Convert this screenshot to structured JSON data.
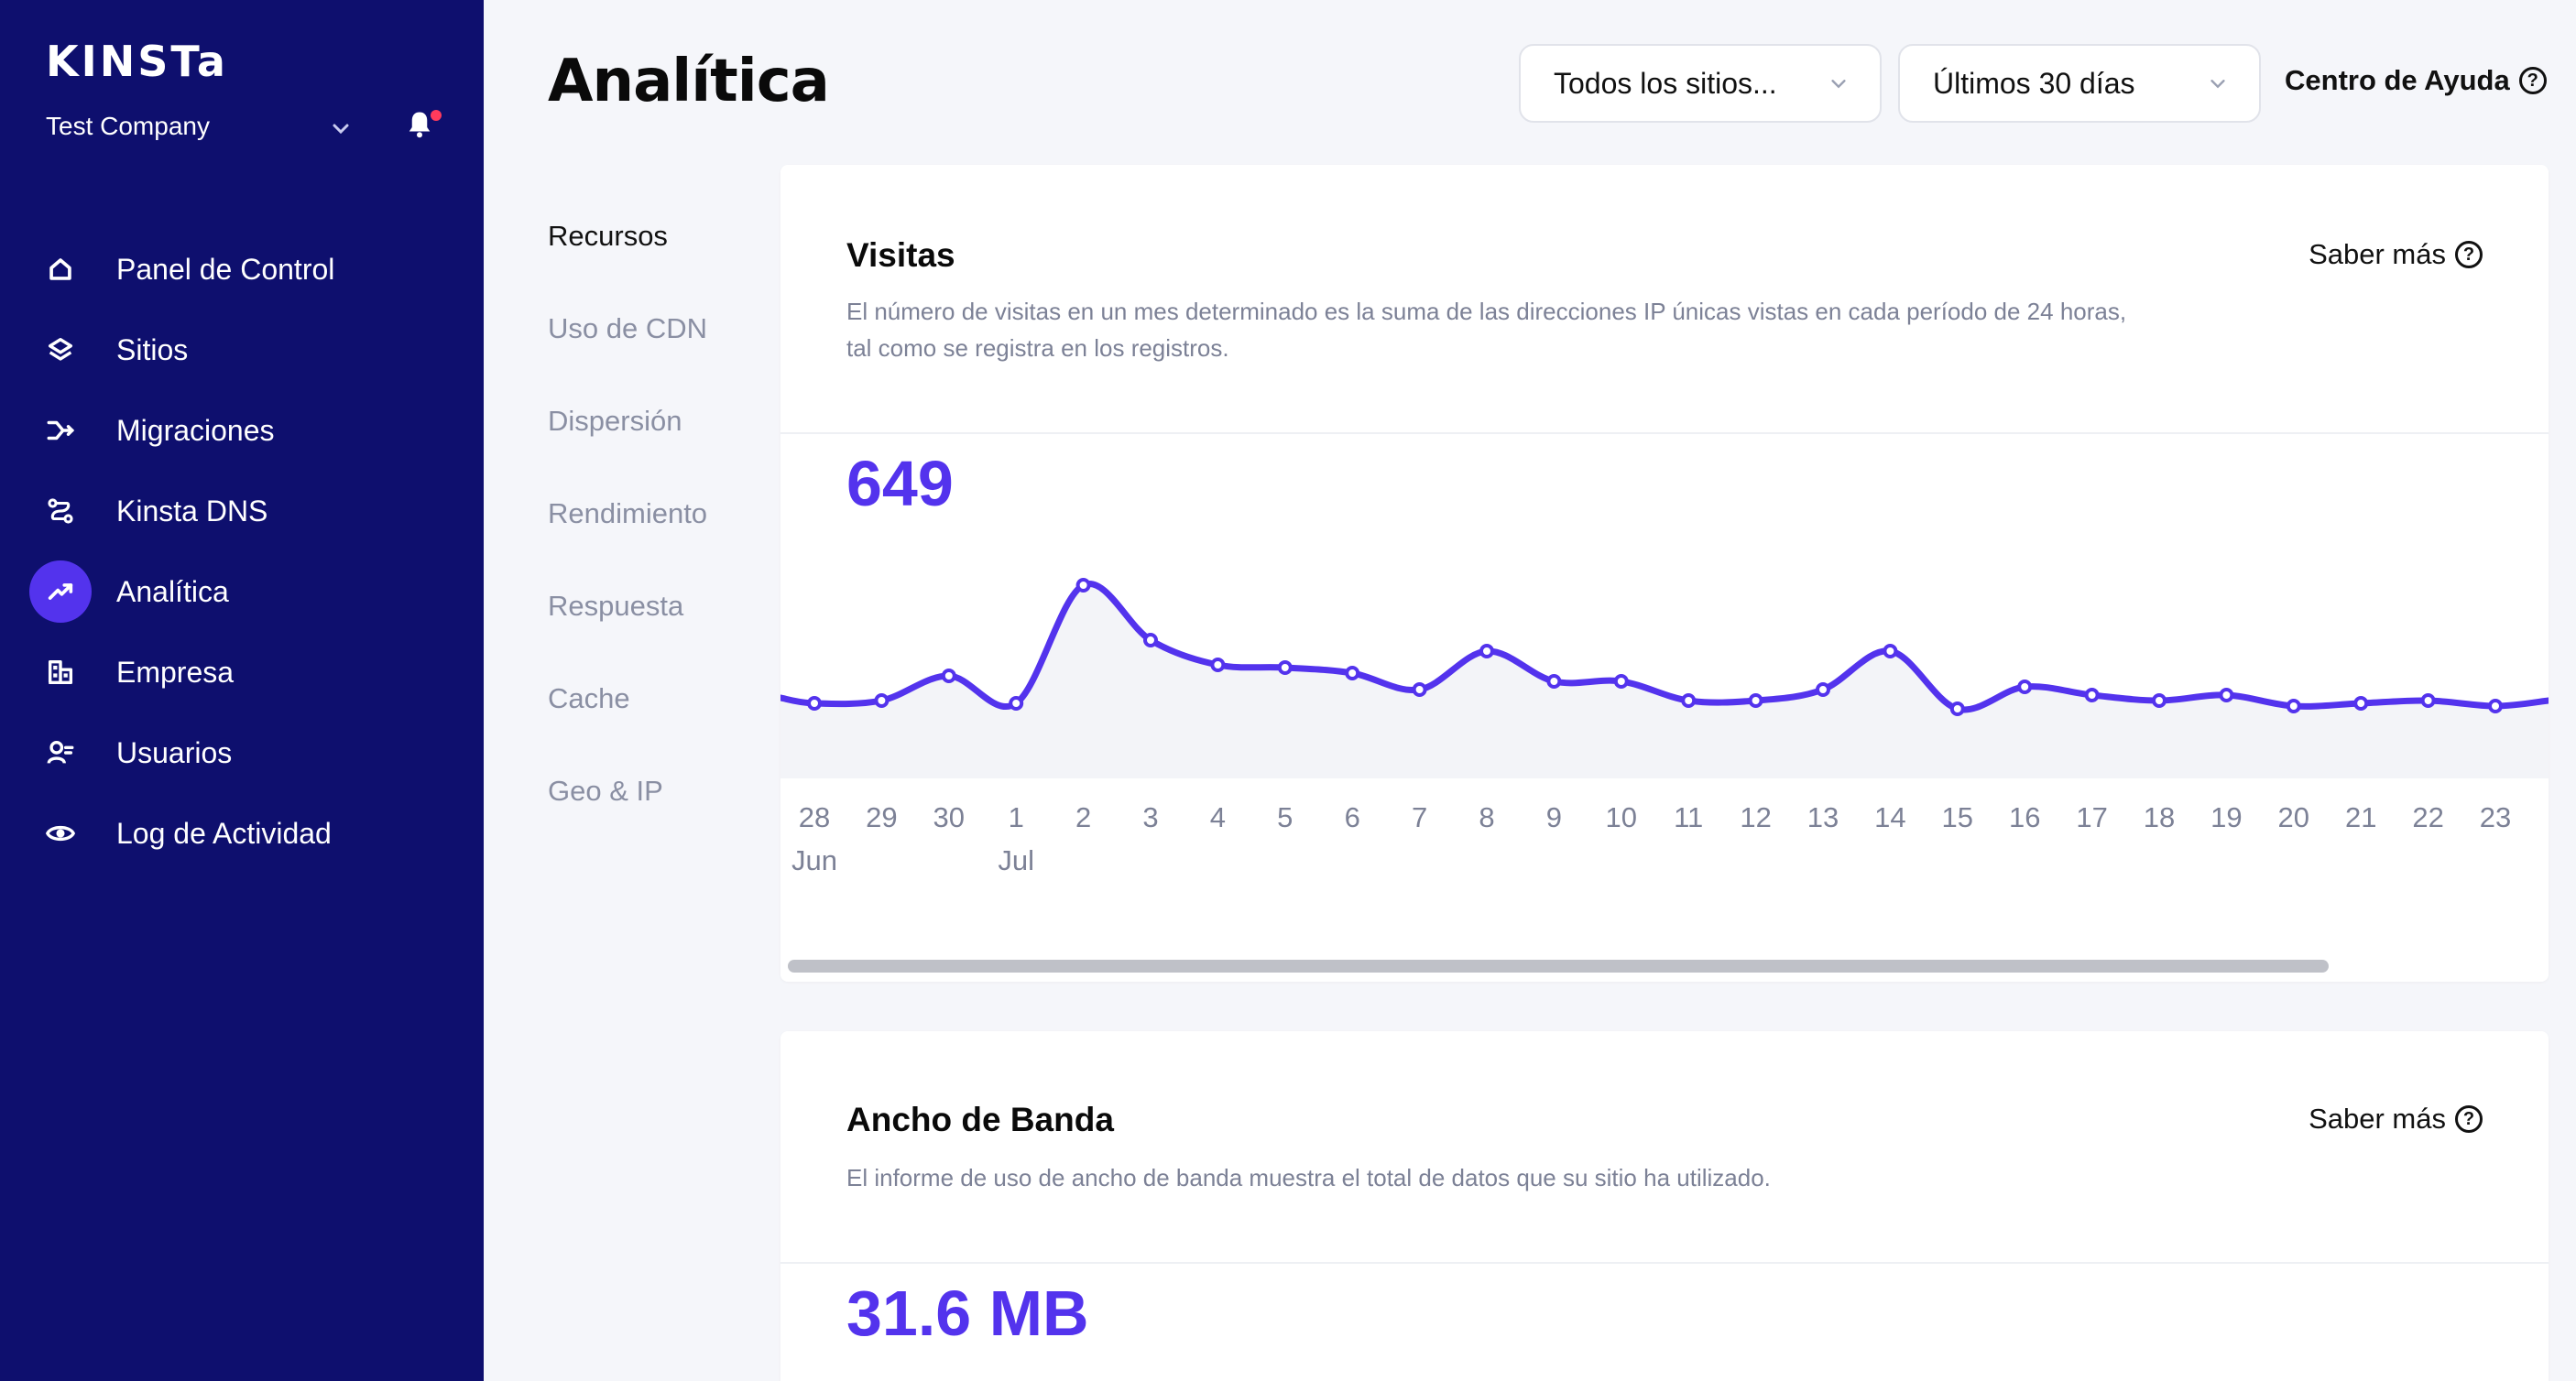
{
  "sidebar": {
    "logo": "KINSTa",
    "company": "Test Company",
    "items": [
      {
        "label": "Panel de Control",
        "icon": "home-icon"
      },
      {
        "label": "Sitios",
        "icon": "layers-icon"
      },
      {
        "label": "Migraciones",
        "icon": "migrate-icon"
      },
      {
        "label": "Kinsta DNS",
        "icon": "dns-icon"
      },
      {
        "label": "Analítica",
        "icon": "trend-icon",
        "active": true
      },
      {
        "label": "Empresa",
        "icon": "building-icon"
      },
      {
        "label": "Usuarios",
        "icon": "user-icon"
      },
      {
        "label": "Log de Actividad",
        "icon": "eye-icon"
      }
    ]
  },
  "header": {
    "title": "Analítica",
    "site_select": "Todos los sitios...",
    "range_select": "Últimos 30 días",
    "help": "Centro de Ayuda"
  },
  "subnav": [
    "Recursos",
    "Uso de CDN",
    "Dispersión",
    "Rendimiento",
    "Respuesta",
    "Cache",
    "Geo & IP"
  ],
  "visits": {
    "title": "Visitas",
    "learn_more": "Saber más",
    "description": "El número de visitas en un mes determinado es la suma de las direcciones IP únicas vistas en cada período de 24 horas, tal como se registra en los registros.",
    "total": "649"
  },
  "bandwidth": {
    "title": "Ancho de Banda",
    "learn_more": "Saber más",
    "description": "El informe de uso de ancho de banda muestra el total de datos que su sitio ha utilizado.",
    "total": "31.6 MB"
  },
  "chart_data": {
    "type": "area",
    "x": [
      "28",
      "29",
      "30",
      "1",
      "2",
      "3",
      "4",
      "5",
      "6",
      "7",
      "8",
      "9",
      "10",
      "11",
      "12",
      "13",
      "14",
      "15",
      "16",
      "17",
      "18",
      "19",
      "20",
      "21",
      "22",
      "23"
    ],
    "month_labels": {
      "28": "Jun",
      "1": "Jul"
    },
    "values": [
      14,
      15,
      24,
      14,
      57,
      37,
      28,
      27,
      25,
      19,
      33,
      22,
      22,
      15,
      15,
      19,
      33,
      12,
      20,
      17,
      15,
      17,
      13,
      14,
      15,
      13
    ],
    "color": "#5333ed",
    "fill": "#f3f4f8"
  }
}
